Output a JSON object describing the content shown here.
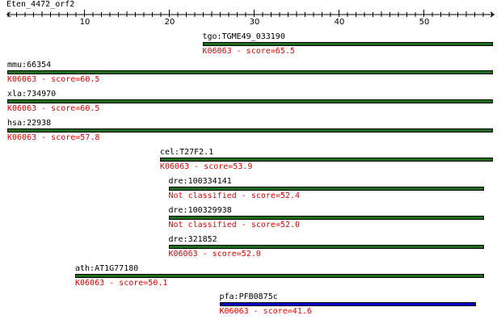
{
  "query": "Eten_4472_orf2",
  "axis": {
    "ticks": [
      "10",
      "20",
      "30",
      "40",
      "50"
    ]
  },
  "colors": {
    "bar_default": "#1e6e1e",
    "bar_highlight": "#0000c8",
    "score_text": "#dd0000"
  },
  "hits": [
    {
      "name": "tgo:TGME49_033190",
      "score_text": "K06063 - score=65.5",
      "start": 24,
      "end": 58
    },
    {
      "name": "mmu:66354",
      "score_text": "K06063 - score=60.5",
      "start": 1,
      "end": 58
    },
    {
      "name": "xla:734970",
      "score_text": "K06063 - score=60.5",
      "start": 1,
      "end": 58
    },
    {
      "name": "hsa:22938",
      "score_text": "K06063 - score=57.8",
      "start": 1,
      "end": 58
    },
    {
      "name": "cel:T27F2.1",
      "score_text": "K06063 - score=53.9",
      "start": 19,
      "end": 58
    },
    {
      "name": "dre:100334141",
      "score_text": "Not classified - score=52.4",
      "start": 20,
      "end": 57
    },
    {
      "name": "dre:100329938",
      "score_text": "Not classified - score=52.0",
      "start": 20,
      "end": 57
    },
    {
      "name": "dre:321852",
      "score_text": "K06063 - score=52.0",
      "start": 20,
      "end": 57
    },
    {
      "name": "ath:AT1G77180",
      "score_text": "K06063 - score=50.1",
      "start": 9,
      "end": 57
    },
    {
      "name": "pfa:PFB0875c",
      "score_text": "K06063 - score=41.6",
      "start": 26,
      "end": 56
    }
  ]
}
